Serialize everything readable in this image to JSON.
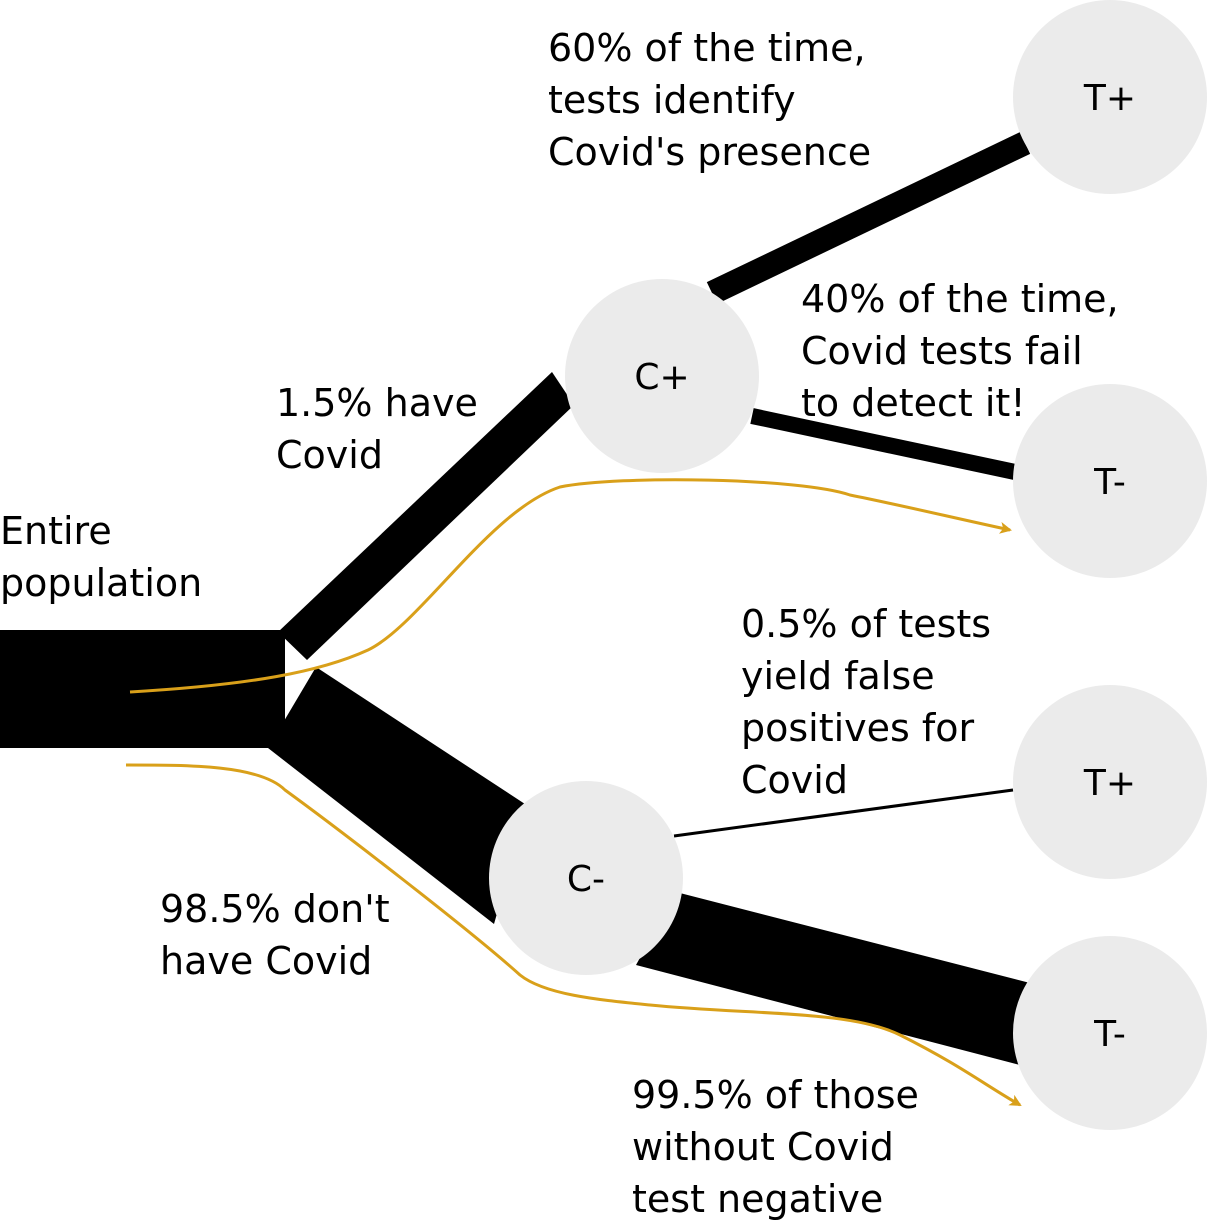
{
  "colors": {
    "flow": "#000000",
    "node_fill": "#ebebeb",
    "highlight": "#d9a01a",
    "text": "#000000"
  },
  "nodes": {
    "c_pos": "C+",
    "c_neg": "C-",
    "t_pos_top": "T+",
    "t_neg_top": "T-",
    "t_pos_bottom": "T+",
    "t_neg_bottom": "T-"
  },
  "labels": {
    "entire_population": [
      "Entire",
      "population"
    ],
    "have_covid": [
      "1.5% have",
      "Covid"
    ],
    "dont_have_covid": [
      "98.5% don't",
      "have Covid"
    ],
    "true_positive": [
      "60% of the time,",
      "tests identify",
      "Covid's presence"
    ],
    "false_negative": [
      "40% of the time,",
      "Covid tests fail",
      "to detect it!"
    ],
    "false_positive": [
      "0.5% of tests",
      "yield false",
      "positives for",
      "Covid"
    ],
    "true_negative": [
      "99.5% of those",
      "without Covid",
      "test negative"
    ]
  }
}
